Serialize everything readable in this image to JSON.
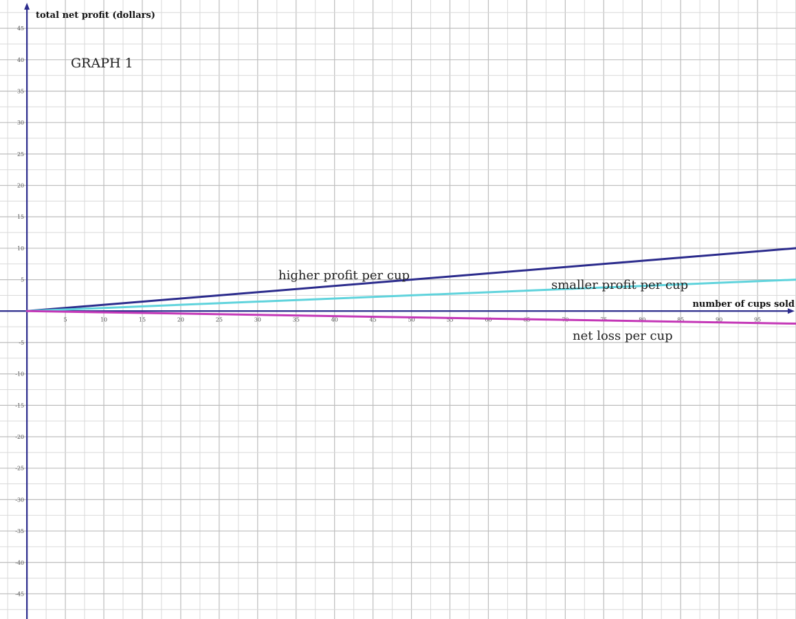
{
  "chart_data": {
    "type": "line",
    "title": "GRAPH 1",
    "xlabel": "number of cups sold",
    "ylabel": "total net profit (dollars)",
    "xlim": [
      -3.5,
      100
    ],
    "ylim": [
      -49,
      49.5
    ],
    "x_ticks": [
      5,
      10,
      15,
      20,
      25,
      30,
      35,
      40,
      45,
      50,
      55,
      60,
      65,
      70,
      75,
      80,
      85,
      90,
      95
    ],
    "y_ticks": [
      45,
      40,
      35,
      30,
      25,
      20,
      15,
      10,
      5,
      -5,
      -10,
      -15,
      -20,
      -25,
      -30,
      -35,
      -40,
      -45
    ],
    "grid": true,
    "series": [
      {
        "name": "higher profit per cup",
        "color": "#2b2b8c",
        "x": [
          0,
          100
        ],
        "y": [
          0,
          10
        ]
      },
      {
        "name": "smaller profit per cup",
        "color": "#5fd3dc",
        "x": [
          0,
          100
        ],
        "y": [
          0,
          5
        ]
      },
      {
        "name": "net loss per cup",
        "color": "#c437b7",
        "x": [
          0,
          100
        ],
        "y": [
          0,
          -2
        ]
      }
    ],
    "annotations": [
      {
        "text": "higher profit per cup",
        "series": 0
      },
      {
        "text": "smaller profit per cup",
        "series": 1
      },
      {
        "text": "net loss per cup",
        "series": 2
      }
    ]
  }
}
